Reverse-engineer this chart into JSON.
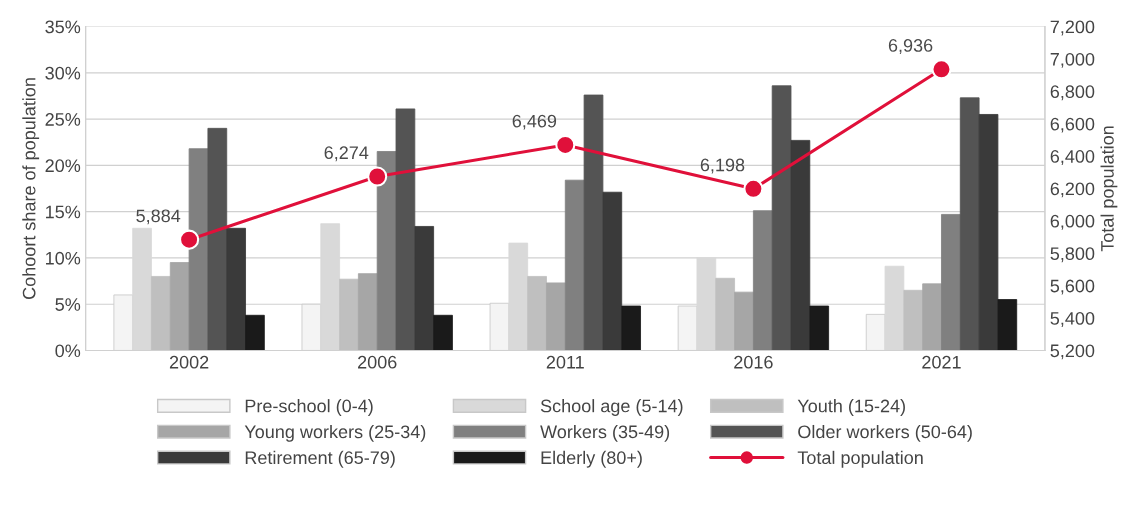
{
  "chart_data": {
    "type": "bar",
    "ylabel": "Cohoort share of population",
    "y2label": "Total population",
    "categories": [
      "2002",
      "2006",
      "2011",
      "2016",
      "2021"
    ],
    "series": [
      {
        "name": "Pre-school (0-4)",
        "color": "#f4f4f4",
        "values": [
          6.0,
          5.0,
          5.1,
          4.8,
          3.9
        ]
      },
      {
        "name": "School age (5-14)",
        "color": "#d9d9d9",
        "values": [
          13.2,
          13.7,
          11.6,
          10.0,
          9.1
        ]
      },
      {
        "name": "Youth (15-24)",
        "color": "#bfbfbf",
        "values": [
          8.0,
          7.7,
          8.0,
          7.8,
          6.5
        ]
      },
      {
        "name": "Young workers (25-34)",
        "color": "#a6a6a6",
        "values": [
          9.5,
          8.3,
          7.3,
          6.3,
          7.2
        ]
      },
      {
        "name": "Workers (35-49)",
        "color": "#808080",
        "values": [
          21.8,
          21.5,
          18.4,
          15.1,
          14.7
        ]
      },
      {
        "name": "Older workers (50-64)",
        "color": "#545454",
        "values": [
          24.0,
          26.1,
          27.6,
          28.6,
          27.3
        ]
      },
      {
        "name": "Retirement (65-79)",
        "color": "#3a3a3a",
        "values": [
          13.2,
          13.4,
          17.1,
          22.7,
          25.5
        ]
      },
      {
        "name": "Elderly (80+)",
        "color": "#1a1a1a",
        "values": [
          3.8,
          3.8,
          4.8,
          4.8,
          5.5
        ]
      },
      {
        "name": "Total population",
        "type": "line",
        "axis": "y2",
        "color": "#e0103a",
        "marker": "circle",
        "values": [
          5884,
          6274,
          6469,
          6198,
          6936
        ],
        "value_labels": [
          "5,884",
          "6,274",
          "6,469",
          "6,198",
          "6,936"
        ]
      }
    ],
    "ylim": [
      0,
      35
    ],
    "yticks": [
      {
        "value": 0,
        "label": "0%"
      },
      {
        "value": 5,
        "label": "5%"
      },
      {
        "value": 10,
        "label": "10%"
      },
      {
        "value": 15,
        "label": "15%"
      },
      {
        "value": 20,
        "label": "20%"
      },
      {
        "value": 25,
        "label": "25%"
      },
      {
        "value": 30,
        "label": "30%"
      },
      {
        "value": 35,
        "label": "35%"
      }
    ],
    "y2lim": [
      5200,
      7200
    ],
    "y2ticks": [
      {
        "value": 5200,
        "label": "5,200"
      },
      {
        "value": 5400,
        "label": "5,400"
      },
      {
        "value": 5600,
        "label": "5,600"
      },
      {
        "value": 5800,
        "label": "5,800"
      },
      {
        "value": 6000,
        "label": "6,000"
      },
      {
        "value": 6200,
        "label": "6,200"
      },
      {
        "value": 6400,
        "label": "6,400"
      },
      {
        "value": 6600,
        "label": "6,600"
      },
      {
        "value": 6800,
        "label": "6,800"
      },
      {
        "value": 7000,
        "label": "7,000"
      },
      {
        "value": 7200,
        "label": "7,200"
      }
    ],
    "grid": "y",
    "legend": "bottom"
  }
}
